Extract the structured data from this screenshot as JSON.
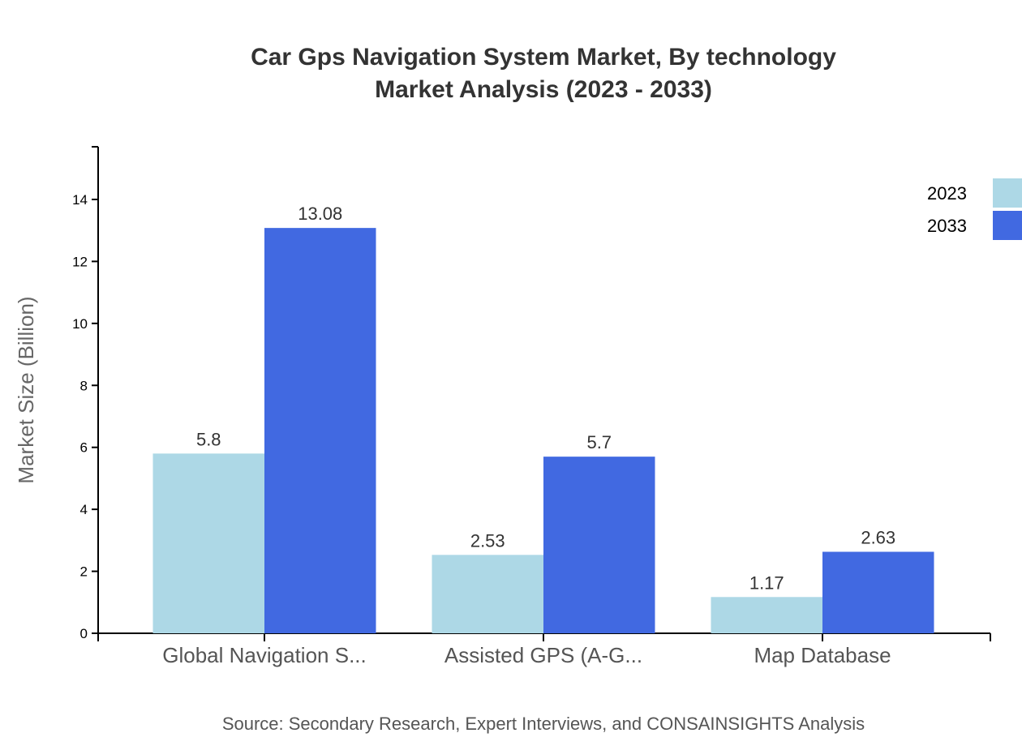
{
  "chart_data": {
    "type": "bar",
    "title": "Car Gps Navigation System Market, By technology",
    "subtitle": "Market Analysis (2023 - 2033)",
    "xlabel": "",
    "ylabel": "Market Size (Billion)",
    "categories": [
      "Global Navigation S...",
      "Assisted GPS (A-G...",
      "Map Database"
    ],
    "series": [
      {
        "name": "2023",
        "color": "#ADD8E6",
        "values": [
          5.8,
          2.53,
          1.17
        ]
      },
      {
        "name": "2033",
        "color": "#4169E1",
        "values": [
          13.08,
          5.7,
          2.63
        ]
      }
    ],
    "ylim": [
      0,
      15.7
    ],
    "yticks": [
      0,
      2,
      4,
      6,
      8,
      10,
      12,
      14
    ],
    "grid": false,
    "legend": "top-right",
    "source": "Source: Secondary Research, Expert Interviews, and CONSAINSIGHTS Analysis"
  }
}
